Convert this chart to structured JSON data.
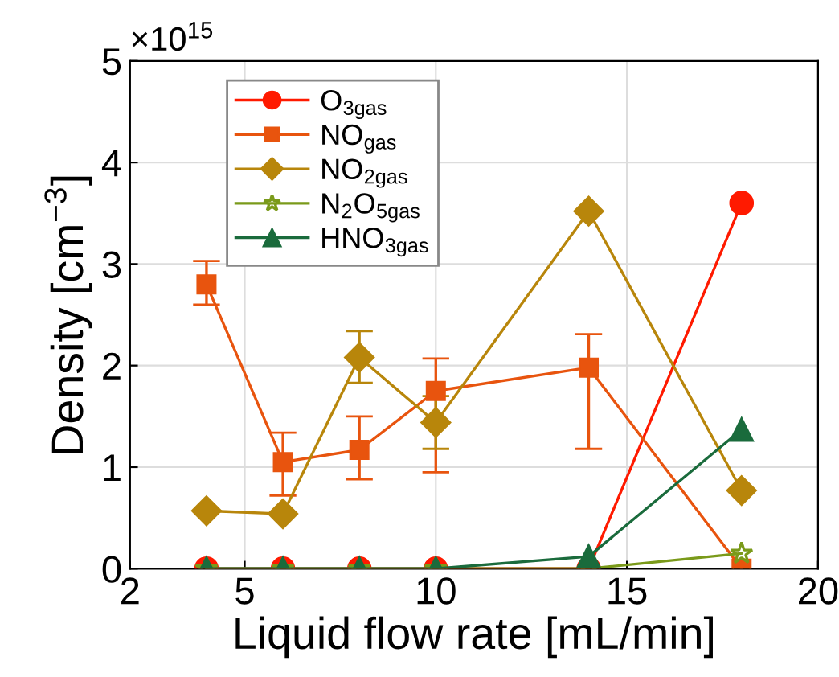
{
  "chart_data": {
    "type": "line",
    "xlabel": "Liquid flow rate [mL/min]",
    "ylabel": "Density [cm$^{−3}$]",
    "annotations": [
      "×10$^{15}$"
    ],
    "x": [
      4,
      6,
      8,
      10,
      14,
      18
    ],
    "xlim": [
      2,
      20
    ],
    "xticks": [
      2,
      5,
      10,
      15,
      20
    ],
    "ylim": [
      0,
      5
    ],
    "yticks": [
      0,
      1,
      2,
      3,
      4,
      5
    ],
    "grid": true,
    "legend": "top left",
    "series": [
      {
        "name": "O$_{3gas}$",
        "color": "#ff1a00",
        "marker": "circle",
        "values": [
          0,
          0,
          0,
          0,
          0,
          3.6
        ]
      },
      {
        "name": "NO$_{gas}$",
        "color": "#e8540e",
        "marker": "square",
        "values": [
          2.8,
          1.05,
          1.17,
          1.75,
          1.98,
          0
        ],
        "errors": [
          [
            2.6,
            3.03
          ],
          [
            0.72,
            1.34
          ],
          [
            0.88,
            1.5
          ],
          [
            0.95,
            2.07
          ],
          [
            1.18,
            2.31
          ],
          null
        ]
      },
      {
        "name": "NO$_{2gas}$",
        "color": "#b8860b",
        "marker": "diamond",
        "values": [
          0.57,
          0.54,
          2.08,
          1.44,
          3.52,
          0.77
        ],
        "errors": [
          null,
          null,
          [
            1.83,
            2.34
          ],
          [
            1.18,
            1.7
          ],
          null,
          null
        ]
      },
      {
        "name": "N$_{2}$O$_{5gas}$",
        "color": "#7a9a1a",
        "marker": "star",
        "values": [
          0,
          0,
          0,
          0,
          0,
          0.15
        ]
      },
      {
        "name": "HNO$_{3gas}$",
        "color": "#1a6b3c",
        "marker": "triangle",
        "values": [
          0,
          0,
          0,
          0,
          0.12,
          1.37
        ]
      }
    ]
  }
}
